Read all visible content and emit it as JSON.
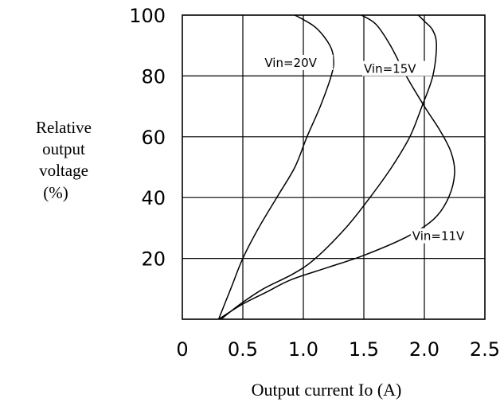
{
  "chart_data": {
    "type": "line",
    "title": "",
    "xlabel": "Output current  Io (A)",
    "ylabel_lines": [
      "Relative",
      "output",
      "voltage",
      "(%)"
    ],
    "xlim": [
      0,
      2.5
    ],
    "ylim": [
      0,
      100
    ],
    "x_ticks": [
      0,
      0.5,
      1.0,
      1.5,
      2.0,
      2.5
    ],
    "x_tick_labels": [
      "0",
      "0.5",
      "1.0",
      "1.5",
      "2.0",
      "2.5"
    ],
    "y_ticks": [
      20,
      40,
      60,
      80,
      100
    ],
    "y_tick_labels": [
      "20",
      "40",
      "60",
      "80",
      "100"
    ],
    "grid": true,
    "series": [
      {
        "name": "Vin=20V",
        "points": [
          [
            0.3,
            0
          ],
          [
            0.4,
            10
          ],
          [
            0.5,
            20
          ],
          [
            0.63,
            30
          ],
          [
            0.78,
            40
          ],
          [
            0.93,
            50
          ],
          [
            1.03,
            60
          ],
          [
            1.14,
            70
          ],
          [
            1.23,
            80
          ],
          [
            1.25,
            85
          ],
          [
            1.22,
            90
          ],
          [
            1.1,
            96
          ],
          [
            0.93,
            100
          ]
        ]
      },
      {
        "name": "Vin=15V",
        "points": [
          [
            0.32,
            0
          ],
          [
            0.48,
            5
          ],
          [
            0.67,
            10
          ],
          [
            0.92,
            15
          ],
          [
            1.1,
            20
          ],
          [
            1.35,
            30
          ],
          [
            1.55,
            40
          ],
          [
            1.73,
            50
          ],
          [
            1.88,
            60
          ],
          [
            1.98,
            70
          ],
          [
            2.07,
            80
          ],
          [
            2.1,
            90
          ],
          [
            2.07,
            95
          ],
          [
            2.0,
            98
          ],
          [
            1.95,
            100
          ]
        ]
      },
      {
        "name": "Vin=11V",
        "points": [
          [
            0.3,
            0
          ],
          [
            0.5,
            5
          ],
          [
            0.7,
            9
          ],
          [
            0.9,
            13
          ],
          [
            1.2,
            17
          ],
          [
            1.5,
            21
          ],
          [
            1.85,
            27
          ],
          [
            2.08,
            33
          ],
          [
            2.2,
            40
          ],
          [
            2.25,
            48
          ],
          [
            2.22,
            55
          ],
          [
            2.13,
            62
          ],
          [
            2.0,
            70
          ],
          [
            1.85,
            80
          ],
          [
            1.72,
            90
          ],
          [
            1.6,
            97
          ],
          [
            1.48,
            100
          ]
        ]
      }
    ],
    "annotations": [
      {
        "text": "Vin=20V",
        "x": 0.68,
        "y": 83
      },
      {
        "text": "Vin=15V",
        "x": 1.5,
        "y": 81
      },
      {
        "text": "Vin=11V",
        "x": 1.9,
        "y": 26
      }
    ]
  }
}
